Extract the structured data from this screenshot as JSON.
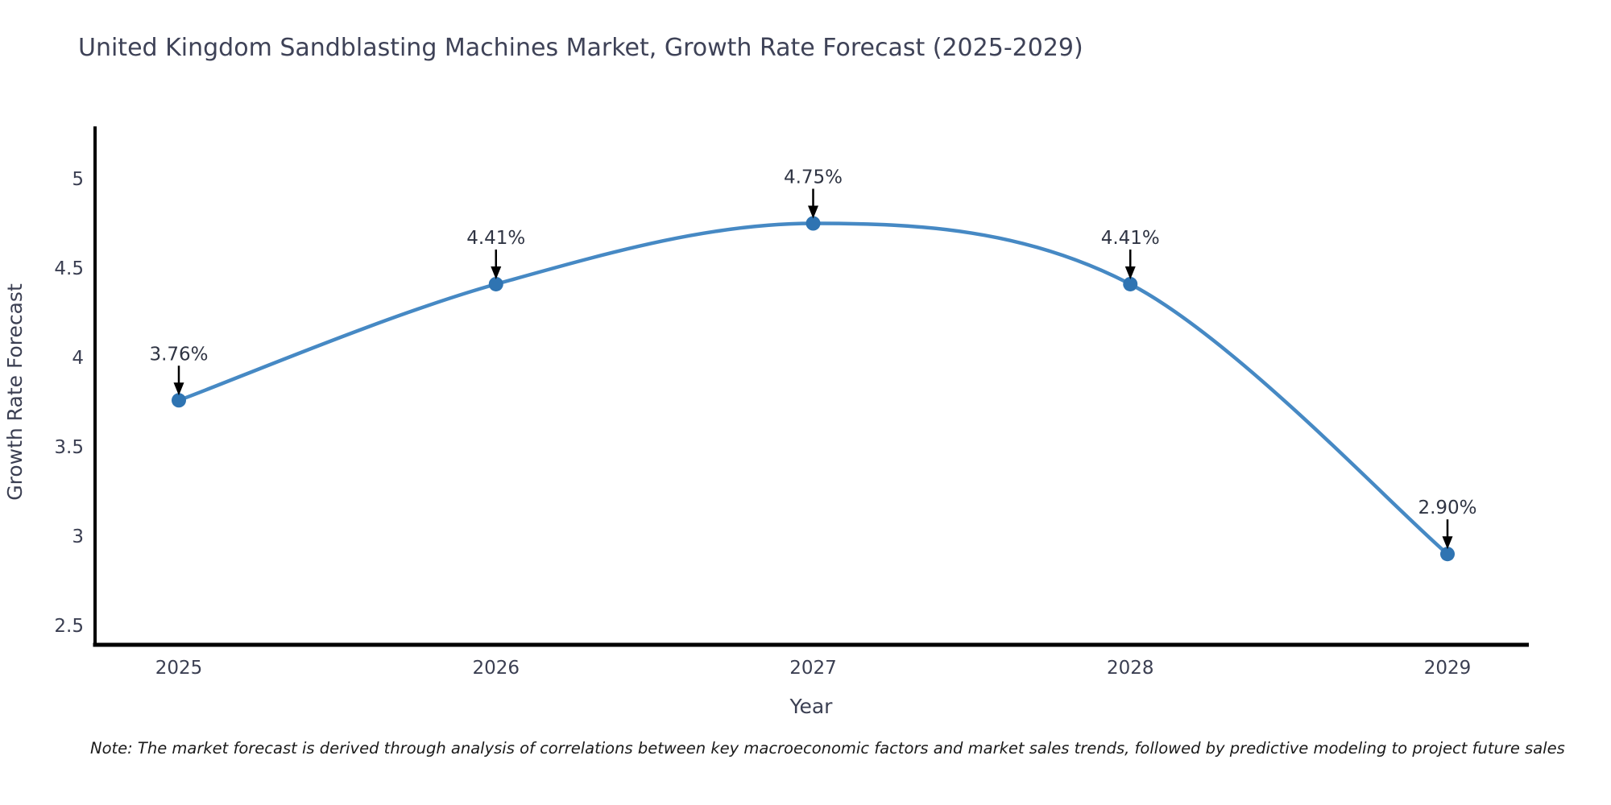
{
  "title": "United Kingdom Sandblasting Machines Market, Growth Rate Forecast (2025-2029)",
  "note": "Note: The market forecast is derived through analysis of correlations between key macroeconomic factors and market sales trends, followed by predictive modeling to project future sales",
  "chart_data": {
    "type": "line",
    "title": "United Kingdom Sandblasting Machines Market, Growth Rate Forecast (2025-2029)",
    "xlabel": "Year",
    "ylabel": "Growth Rate Forecast",
    "x": [
      2025,
      2026,
      2027,
      2028,
      2029
    ],
    "values": [
      3.76,
      4.41,
      4.75,
      4.41,
      2.9
    ],
    "data_labels": [
      "3.76%",
      "4.41%",
      "4.75%",
      "4.41%",
      "2.90%"
    ],
    "xtick_labels": [
      "2025",
      "2026",
      "2027",
      "2028",
      "2029"
    ],
    "yticks": [
      2.5,
      3,
      3.5,
      4,
      4.5,
      5
    ],
    "ytick_labels": [
      "2.5",
      "3",
      "3.5",
      "4",
      "4.5",
      "5"
    ],
    "ylim": [
      2.2,
      5.3
    ],
    "grid": false,
    "legend": false,
    "curve": "spline",
    "annotation_arrows": "black-down-arrows",
    "line_color": "#4689c4",
    "marker_color": "#2f74b2",
    "arrow_color": "#000000",
    "axis_color": "#000000",
    "text_color": "#3b3f52",
    "background_color": "#ffffff"
  }
}
